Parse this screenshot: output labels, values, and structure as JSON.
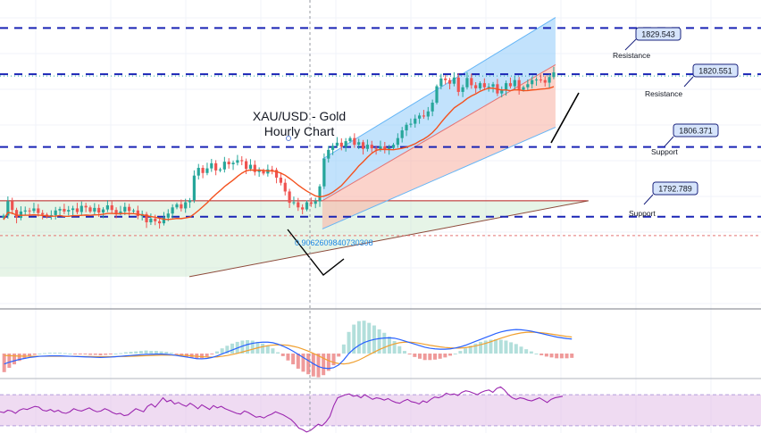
{
  "chart_data": [
    {
      "type": "candlestick",
      "title": "XAU/USD - Gold\nHourly Chart",
      "grid": true,
      "candles_close": [
        1793.0,
        1795.8,
        1794.1,
        1792.6,
        1793.8,
        1794.0,
        1793.9,
        1794.4,
        1793.5,
        1793.2,
        1792.8,
        1793.1,
        1794.0,
        1794.3,
        1793.8,
        1794.1,
        1794.4,
        1793.7,
        1794.9,
        1794.6,
        1793.8,
        1794.5,
        1793.6,
        1794.2,
        1795.0,
        1794.1,
        1793.5,
        1793.8,
        1794.7,
        1793.9,
        1794.0,
        1792.9,
        1793.3,
        1791.7,
        1792.4,
        1791.9,
        1791.5,
        1792.6,
        1793.4,
        1794.6,
        1795.2,
        1794.4,
        1795.6,
        1796.0,
        1800.8,
        1802.3,
        1801.3,
        1802.2,
        1803.2,
        1801.8,
        1802.0,
        1803.5,
        1803.0,
        1803.3,
        1803.8,
        1803.6,
        1802.1,
        1802.9,
        1801.5,
        1801.8,
        1801.2,
        1802.0,
        1801.9,
        1800.4,
        1799.4,
        1797.7,
        1795.5,
        1795.6,
        1794.6,
        1794.2,
        1795.6,
        1795.3,
        1795.8,
        1798.7,
        1804.1,
        1805.8,
        1806.6,
        1807.2,
        1806.4,
        1807.5,
        1808.1,
        1806.8,
        1807.3,
        1806.0,
        1806.8,
        1806.1,
        1805.9,
        1806.5,
        1805.8,
        1806.2,
        1806.8,
        1808.1,
        1809.6,
        1810.7,
        1810.9,
        1811.9,
        1812.5,
        1812.3,
        1813.3,
        1815.0,
        1818.2,
        1819.7,
        1819.4,
        1818.7,
        1819.9,
        1817.1,
        1818.0,
        1819.8,
        1818.4,
        1817.8,
        1818.8,
        1818.0,
        1818.1,
        1818.6,
        1816.8,
        1817.4,
        1818.8,
        1818.2,
        1819.4,
        1817.5,
        1818.0,
        1818.6,
        1819.4,
        1819.5,
        1819.4,
        1818.9,
        1820.0,
        1820.9
      ],
      "levels": [
        {
          "value": 1829.543,
          "label": "1829.543",
          "caption": "Resistance"
        },
        {
          "value": 1820.551,
          "label": "1820.551",
          "caption": "Resistance"
        },
        {
          "value": 1806.371,
          "label": "1806.371",
          "caption": "Support"
        },
        {
          "value": 1792.789,
          "label": "1792.789",
          "caption": "Support"
        }
      ],
      "current_price_level": 1820.2,
      "channel": {
        "start_index": 74,
        "end_index": 127,
        "lower_start": 1790.4,
        "lower_end": 1810.2,
        "mid_start": 1795.9,
        "mid_end": 1822.4,
        "upper_start": 1804.0,
        "upper_end": 1831.6
      },
      "triangle": {
        "start_index": 0,
        "end_index": 135,
        "top": 1795.9,
        "bottom_start": 1781.1,
        "bottom_end": 1795.9
      },
      "annotation_value": "0.9062609840730308",
      "annotation_level": 1789.1
    },
    {
      "type": "line",
      "name": "MACD panel",
      "macd_line": [
        -0.53,
        -0.44,
        -0.37,
        -0.3,
        -0.25,
        -0.2,
        -0.17,
        -0.14,
        -0.13,
        -0.12,
        -0.12,
        -0.12,
        -0.13,
        -0.14,
        -0.15,
        -0.16,
        -0.17,
        -0.18,
        -0.19,
        -0.2,
        -0.19,
        -0.18,
        -0.16,
        -0.14,
        -0.12,
        -0.1,
        -0.08,
        -0.06,
        -0.04,
        -0.04,
        -0.03,
        -0.03,
        -0.04,
        -0.06,
        -0.1,
        -0.14,
        -0.18,
        -0.22,
        -0.26,
        -0.27,
        -0.25,
        -0.2,
        -0.12,
        -0.02,
        0.08,
        0.18,
        0.28,
        0.38,
        0.46,
        0.52,
        0.56,
        0.58,
        0.58,
        0.55,
        0.48,
        0.38,
        0.26,
        0.12,
        -0.04,
        -0.2,
        -0.36,
        -0.52,
        -0.66,
        -0.74,
        -0.76,
        -0.72,
        -0.58,
        -0.32,
        0.0,
        0.24,
        0.42,
        0.56,
        0.65,
        0.72,
        0.76,
        0.79,
        0.8,
        0.78,
        0.72,
        0.64,
        0.56,
        0.48,
        0.4,
        0.32,
        0.27,
        0.24,
        0.22,
        0.22,
        0.24,
        0.28,
        0.34,
        0.42,
        0.52,
        0.62,
        0.72,
        0.82,
        0.92,
        1.02,
        1.1,
        1.16,
        1.2,
        1.22,
        1.21,
        1.18,
        1.14,
        1.08,
        1.02,
        0.96,
        0.9,
        0.84,
        0.8,
        0.76,
        0.74
      ],
      "signal_line": [
        -0.1,
        -0.11,
        -0.12,
        -0.13,
        -0.13,
        -0.14,
        -0.14,
        -0.14,
        -0.14,
        -0.14,
        -0.14,
        -0.14,
        -0.14,
        -0.14,
        -0.14,
        -0.15,
        -0.15,
        -0.15,
        -0.16,
        -0.16,
        -0.16,
        -0.16,
        -0.16,
        -0.15,
        -0.15,
        -0.14,
        -0.13,
        -0.12,
        -0.11,
        -0.1,
        -0.09,
        -0.08,
        -0.08,
        -0.08,
        -0.08,
        -0.09,
        -0.1,
        -0.12,
        -0.14,
        -0.16,
        -0.18,
        -0.18,
        -0.17,
        -0.14,
        -0.1,
        -0.05,
        0.01,
        0.08,
        0.15,
        0.22,
        0.29,
        0.35,
        0.4,
        0.43,
        0.45,
        0.44,
        0.42,
        0.37,
        0.31,
        0.22,
        0.12,
        0.01,
        -0.11,
        -0.24,
        -0.36,
        -0.45,
        -0.51,
        -0.53,
        -0.5,
        -0.43,
        -0.33,
        -0.2,
        -0.06,
        0.07,
        0.2,
        0.31,
        0.41,
        0.49,
        0.55,
        0.58,
        0.58,
        0.56,
        0.52,
        0.47,
        0.42,
        0.38,
        0.34,
        0.31,
        0.29,
        0.28,
        0.28,
        0.3,
        0.34,
        0.39,
        0.45,
        0.52,
        0.6,
        0.69,
        0.78,
        0.86,
        0.94,
        1.0,
        1.05,
        1.08,
        1.09,
        1.08,
        1.06,
        1.03,
        0.99,
        0.95,
        0.91,
        0.87,
        0.84
      ]
    },
    {
      "type": "line",
      "name": "RSI panel",
      "ylim": [
        0,
        100
      ],
      "band": [
        30,
        70
      ],
      "values": [
        48,
        47,
        50,
        49,
        46,
        50,
        52,
        51,
        53,
        55,
        54,
        50,
        49,
        51,
        48,
        50,
        47,
        46,
        48,
        52,
        50,
        49,
        51,
        53,
        50,
        48,
        49,
        52,
        50,
        47,
        45,
        46,
        43,
        44,
        48,
        52,
        50,
        48,
        55,
        58,
        54,
        60,
        66,
        61,
        63,
        58,
        60,
        57,
        55,
        59,
        56,
        52,
        57,
        54,
        51,
        56,
        53,
        55,
        52,
        50,
        48,
        46,
        45,
        49,
        47,
        44,
        41,
        42,
        40,
        43,
        45,
        48,
        46,
        44,
        41,
        38,
        33,
        27,
        25,
        22,
        24,
        28,
        32,
        30,
        35,
        42,
        56,
        66,
        68,
        70,
        71,
        68,
        69,
        66,
        70,
        67,
        64,
        66,
        65,
        63,
        65,
        62,
        60,
        59,
        62,
        64,
        61,
        60,
        58,
        62,
        60,
        64,
        67,
        66,
        68,
        72,
        70,
        71,
        69,
        73,
        75,
        74,
        72,
        70,
        73,
        75,
        76,
        73,
        78,
        80,
        76,
        70,
        66,
        64,
        66,
        65,
        63,
        62,
        64,
        66,
        63,
        60,
        64,
        66,
        67,
        68
      ]
    }
  ],
  "colors": {
    "up": "#26a69a",
    "down": "#ef5350",
    "level_line": "#1a24b5",
    "channel_upper_fill": "#90caf9",
    "channel_lower_fill": "#f8b5a8",
    "triangle_fill": "#c8e6c9",
    "ma_line": "#f4511e",
    "macd_line": "#2962ff",
    "signal_line": "#f0a030",
    "rsi_line": "#9c27b0",
    "rsi_band": "#e1bee7",
    "label_fill": "#d6e4fb",
    "label_border": "#1a237e"
  }
}
